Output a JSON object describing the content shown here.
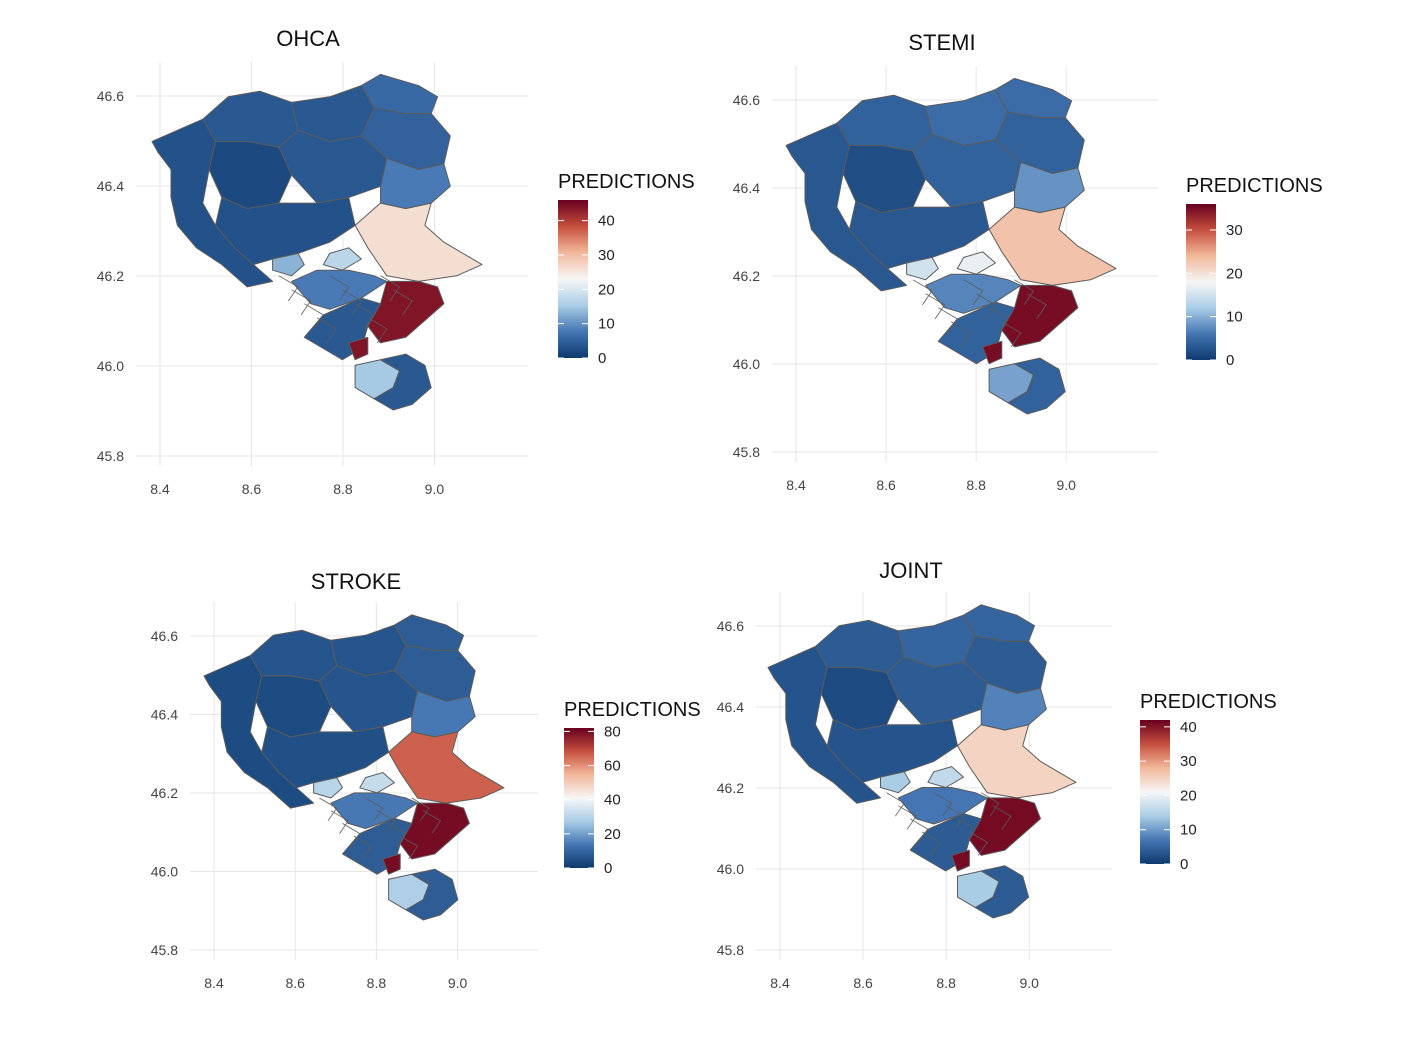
{
  "legend_title": "PREDICTIONS",
  "xticks": [
    "8.4",
    "8.6",
    "8.8",
    "9.0"
  ],
  "yticks": [
    "46.6",
    "46.4",
    "46.2",
    "46.0",
    "45.8"
  ],
  "scale_colors": [
    "#0d3a6e",
    "#4576b3",
    "#aacde6",
    "#f6f6f6",
    "#f2b89b",
    "#c64f3e",
    "#67001f"
  ],
  "panels": [
    {
      "title": "OHCA",
      "legend_max": 46,
      "legend_ticks": [
        0,
        10,
        20,
        30,
        40
      ],
      "region_values": {
        "west": 3,
        "north_west": 4,
        "north_centre": 4,
        "north_east": 5,
        "north_tip": 6,
        "centre_big": 2,
        "centre_mid": 4,
        "south_centre": 3,
        "east_upper": 8,
        "east_valley": 26,
        "lake_west": 13,
        "lake_mid": 17,
        "lake_south": 8,
        "south_east": 44,
        "south_tip": 4,
        "south_spot": 44,
        "south_pale": 15
      }
    },
    {
      "title": "STEMI",
      "legend_max": 36,
      "legend_ticks": [
        0,
        10,
        20,
        30
      ],
      "region_values": {
        "west": 3,
        "north_west": 4,
        "north_centre": 5,
        "north_east": 4,
        "north_tip": 5,
        "centre_big": 2,
        "centre_mid": 4,
        "south_centre": 3,
        "east_upper": 8,
        "east_valley": 23,
        "lake_west": 15,
        "lake_mid": 17,
        "lake_south": 7,
        "south_east": 35,
        "south_tip": 4,
        "south_spot": 35,
        "south_pale": 9
      }
    },
    {
      "title": "STROKE",
      "legend_max": 82,
      "legend_ticks": [
        0,
        20,
        40,
        60,
        80
      ],
      "region_values": {
        "west": 4,
        "north_west": 6,
        "north_centre": 6,
        "north_east": 8,
        "north_tip": 8,
        "centre_big": 4,
        "centre_mid": 6,
        "south_centre": 5,
        "east_upper": 14,
        "east_valley": 66,
        "lake_west": 30,
        "lake_mid": 32,
        "lake_south": 14,
        "south_east": 80,
        "south_tip": 8,
        "south_spot": 80,
        "south_pale": 28
      }
    },
    {
      "title": "JOINT",
      "legend_max": 42,
      "legend_ticks": [
        0,
        10,
        20,
        30,
        40
      ],
      "region_values": {
        "west": 3,
        "north_west": 4,
        "north_centre": 5,
        "north_east": 4,
        "north_tip": 5,
        "centre_big": 2,
        "centre_mid": 4,
        "south_centre": 3,
        "east_upper": 8,
        "east_valley": 25,
        "lake_west": 14,
        "lake_mid": 16,
        "lake_south": 7,
        "south_east": 41,
        "south_tip": 4,
        "south_spot": 41,
        "south_pale": 14
      }
    }
  ]
}
